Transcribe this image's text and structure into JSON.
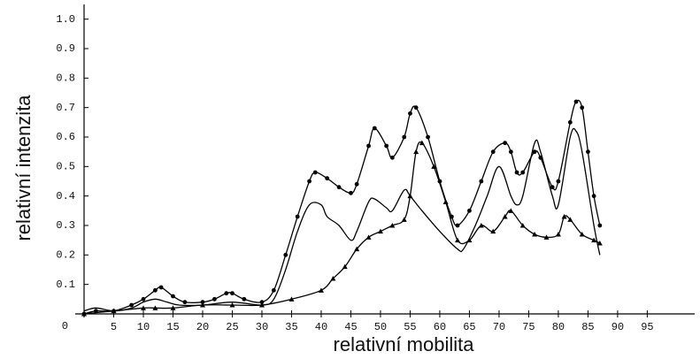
{
  "chart_data": {
    "type": "line",
    "xlabel": "relativní mobilita",
    "ylabel": "relativní intenzita",
    "xlim": [
      0,
      103
    ],
    "ylim": [
      0,
      1.05
    ],
    "xticks": [
      5,
      10,
      15,
      20,
      25,
      30,
      35,
      40,
      45,
      50,
      55,
      60,
      65,
      70,
      75,
      80,
      85,
      90,
      95
    ],
    "yticks": [
      0,
      0.1,
      0.2,
      0.3,
      0.4,
      0.5,
      0.6,
      0.7,
      0.8,
      0.9,
      {
        "value": 1.0,
        "label": "1.0"
      }
    ],
    "series": [
      {
        "color": "#000000",
        "marker": "circle",
        "x": [
          0,
          2,
          5,
          8,
          10,
          12,
          13,
          15,
          17,
          20,
          22,
          24,
          25,
          27,
          30,
          32,
          34,
          36,
          38,
          39,
          41,
          43,
          45,
          46,
          48,
          49,
          51,
          52,
          54,
          55,
          56,
          58,
          60,
          62,
          63,
          65,
          67,
          69,
          71,
          72,
          73,
          74,
          76,
          77,
          79,
          80,
          82,
          83,
          84,
          85,
          86,
          87
        ],
        "values": [
          0.0,
          0.01,
          0.01,
          0.03,
          0.05,
          0.08,
          0.09,
          0.06,
          0.04,
          0.04,
          0.05,
          0.07,
          0.07,
          0.05,
          0.04,
          0.08,
          0.2,
          0.33,
          0.45,
          0.48,
          0.46,
          0.43,
          0.41,
          0.44,
          0.57,
          0.63,
          0.57,
          0.53,
          0.6,
          0.68,
          0.7,
          0.6,
          0.45,
          0.33,
          0.3,
          0.35,
          0.45,
          0.55,
          0.58,
          0.55,
          0.48,
          0.48,
          0.55,
          0.53,
          0.43,
          0.45,
          0.65,
          0.72,
          0.7,
          0.55,
          0.4,
          0.3
        ]
      },
      {
        "color": "#000000",
        "marker": "none",
        "x": [
          0,
          2,
          5,
          8,
          10,
          12,
          14,
          16,
          20,
          25,
          30,
          32,
          34,
          36,
          38,
          40,
          41,
          43,
          45,
          46,
          48,
          49,
          51,
          52,
          54,
          55,
          57,
          60,
          63,
          64,
          66,
          68,
          70,
          72,
          73,
          74,
          76,
          77,
          79,
          80,
          82,
          83,
          84,
          86,
          87
        ],
        "values": [
          0.01,
          0.02,
          0.01,
          0.02,
          0.04,
          0.05,
          0.04,
          0.03,
          0.03,
          0.04,
          0.03,
          0.05,
          0.15,
          0.28,
          0.37,
          0.37,
          0.33,
          0.3,
          0.25,
          0.28,
          0.38,
          0.39,
          0.36,
          0.35,
          0.42,
          0.4,
          0.35,
          0.28,
          0.22,
          0.22,
          0.3,
          0.4,
          0.5,
          0.4,
          0.37,
          0.4,
          0.58,
          0.55,
          0.4,
          0.37,
          0.6,
          0.62,
          0.55,
          0.3,
          0.2
        ]
      },
      {
        "color": "#000000",
        "marker": "triangle",
        "x": [
          0,
          5,
          10,
          12,
          15,
          20,
          25,
          30,
          35,
          40,
          42,
          44,
          46,
          48,
          50,
          52,
          54,
          55,
          56,
          57,
          59,
          61,
          63,
          65,
          67,
          69,
          71,
          72,
          74,
          76,
          78,
          80,
          81,
          82,
          84,
          86,
          87
        ],
        "values": [
          0.0,
          0.01,
          0.02,
          0.02,
          0.02,
          0.03,
          0.03,
          0.03,
          0.05,
          0.08,
          0.12,
          0.16,
          0.22,
          0.26,
          0.28,
          0.3,
          0.32,
          0.4,
          0.55,
          0.58,
          0.5,
          0.38,
          0.25,
          0.25,
          0.3,
          0.28,
          0.33,
          0.35,
          0.3,
          0.27,
          0.26,
          0.27,
          0.33,
          0.32,
          0.27,
          0.25,
          0.24
        ]
      }
    ]
  }
}
